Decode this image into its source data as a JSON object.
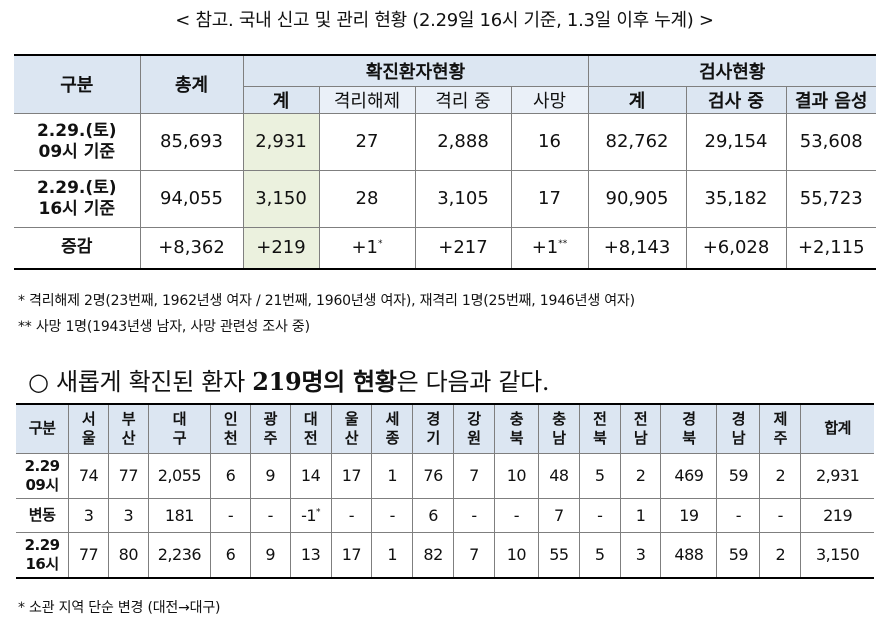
{
  "title": "< 참고. 국내 신고 및 관리 현황 (2.29일 16시 기준, 1.3일 이후 누계) >",
  "table1": {
    "h_gubun": "구분",
    "h_total": "총계",
    "h_confirmed": "확진환자현황",
    "h_test": "검사현황",
    "sub": [
      "계",
      "격리해제",
      "격리 중",
      "사망",
      "계",
      "검사 중",
      "결과 음성"
    ],
    "rows": [
      {
        "label1": "2.29.(토)",
        "label2": "09시 기준",
        "cells": [
          "85,693",
          "2,931",
          "27",
          "2,888",
          "16",
          "82,762",
          "29,154",
          "53,608"
        ]
      },
      {
        "label1": "2.29.(토)",
        "label2": "16시 기준",
        "cells": [
          "94,055",
          "3,150",
          "28",
          "3,105",
          "17",
          "90,905",
          "35,182",
          "55,723"
        ]
      }
    ],
    "diff": {
      "label": "증감",
      "cells": [
        "+8,362",
        "+219",
        "+1",
        "+217",
        "+1",
        "+8,143",
        "+6,028",
        "+2,115"
      ],
      "sup_release": "*",
      "sup_death": "**"
    }
  },
  "notes": {
    "n1": "* 격리해제 2명(23번째, 1962년생 여자 / 21번째, 1960년생 여자), 재격리 1명(25번째, 1946년생 여자)",
    "n2": "** 사망 1명(1943년생 남자, 사망 관련성 조사 중)",
    "n3": "* 소관 지역 단순 변경 (대전→대구)"
  },
  "subtitle": {
    "prefix": "○ 새롭게 확진된 환자 ",
    "bold": "219명의 현황",
    "suffix": "은 다음과 같다."
  },
  "table2": {
    "h_gubun": "구분",
    "regions": [
      [
        "서",
        "울"
      ],
      [
        "부",
        "산"
      ],
      [
        "대",
        "구"
      ],
      [
        "인",
        "천"
      ],
      [
        "광",
        "주"
      ],
      [
        "대",
        "전"
      ],
      [
        "울",
        "산"
      ],
      [
        "세",
        "종"
      ],
      [
        "경",
        "기"
      ],
      [
        "강",
        "원"
      ],
      [
        "충",
        "북"
      ],
      [
        "충",
        "남"
      ],
      [
        "전",
        "북"
      ],
      [
        "전",
        "남"
      ],
      [
        "경",
        "북"
      ],
      [
        "경",
        "남"
      ],
      [
        "제",
        "주"
      ]
    ],
    "h_sum": "합계",
    "rows": [
      {
        "label1": "2.29",
        "label2": "09시",
        "cells": [
          "74",
          "77",
          "2,055",
          "6",
          "9",
          "14",
          "17",
          "1",
          "76",
          "7",
          "10",
          "48",
          "5",
          "2",
          "469",
          "59",
          "2",
          "2,931"
        ]
      },
      {
        "label1": "변동",
        "label2": "",
        "cells": [
          "3",
          "3",
          "181",
          "-",
          "-",
          "-1",
          "-",
          "-",
          "6",
          "-",
          "-",
          "7",
          "-",
          "1",
          "19",
          "-",
          "-",
          "219"
        ],
        "sup_daejeon": "*"
      },
      {
        "label1": "2.29",
        "label2": "16시",
        "cells": [
          "77",
          "80",
          "2,236",
          "6",
          "9",
          "13",
          "17",
          "1",
          "82",
          "7",
          "10",
          "55",
          "5",
          "3",
          "488",
          "59",
          "2",
          "3,150"
        ]
      }
    ]
  }
}
